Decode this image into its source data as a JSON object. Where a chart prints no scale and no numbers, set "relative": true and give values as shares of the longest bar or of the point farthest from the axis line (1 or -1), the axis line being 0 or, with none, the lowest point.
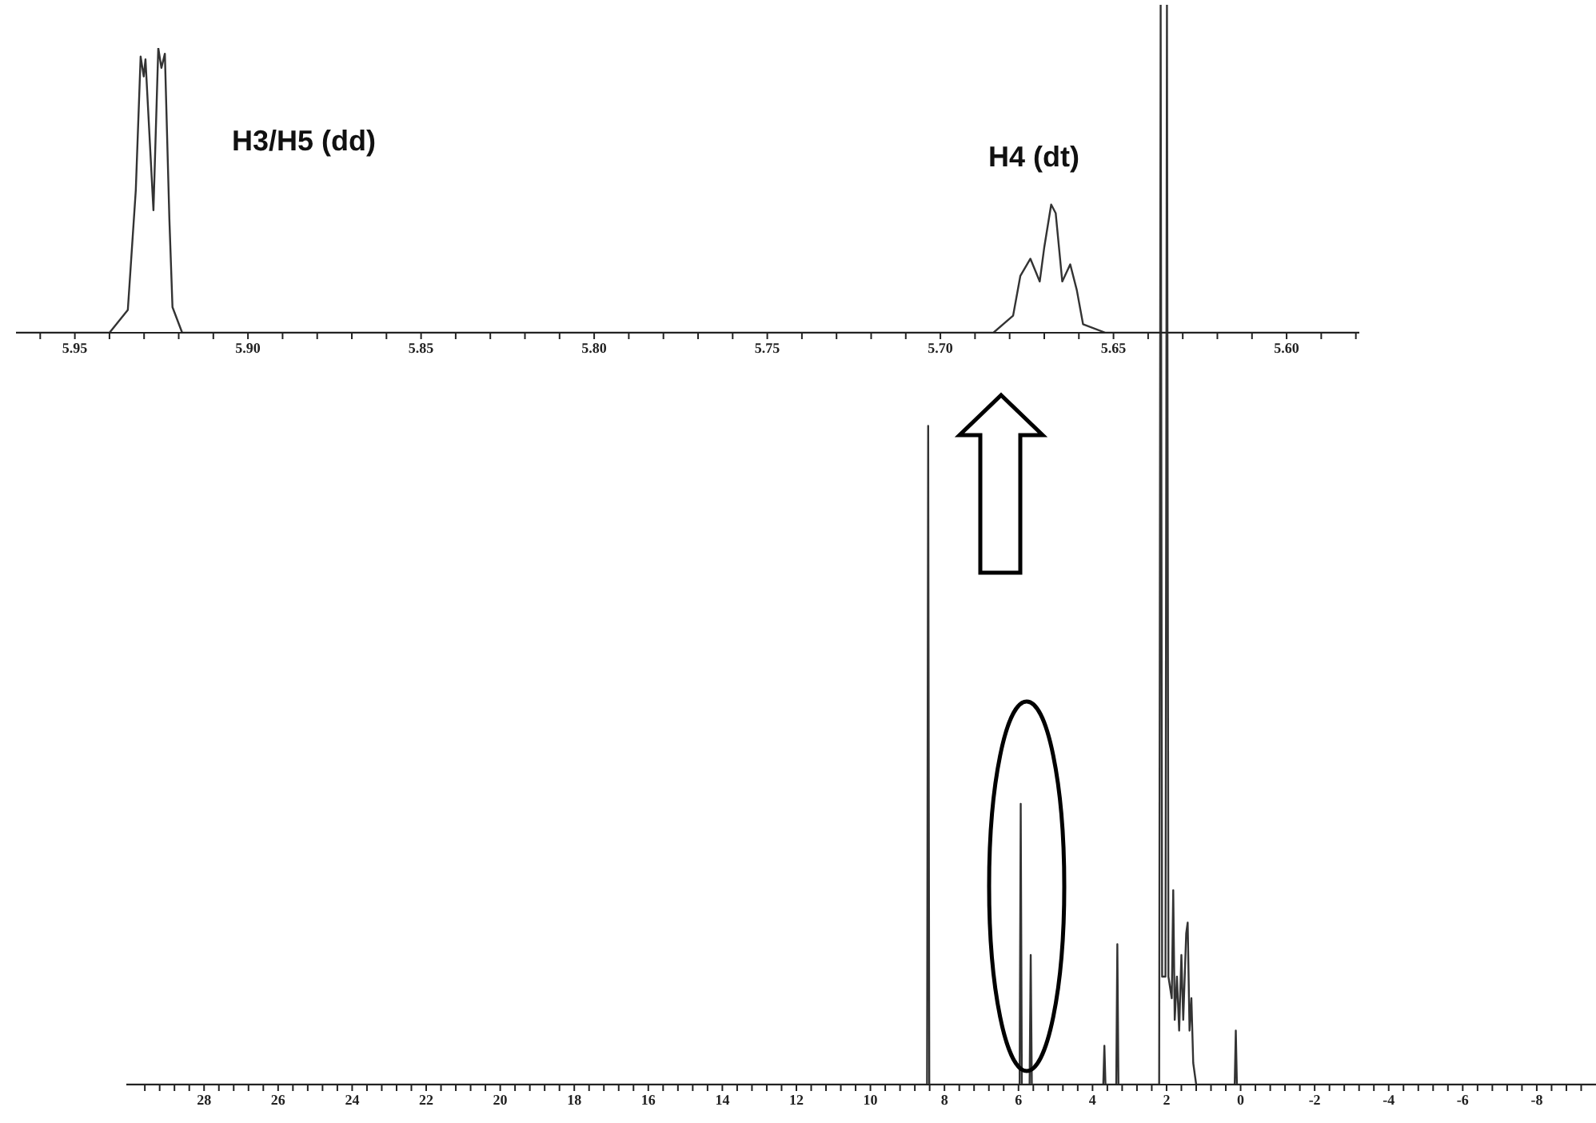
{
  "chart_data": [
    {
      "type": "line",
      "relative": true,
      "marker": "none",
      "tick_labels": "x",
      "xlim": [
        5.967,
        5.579
      ],
      "xticks": [
        {
          "value": 5.96,
          "label": null
        },
        5.95,
        {
          "value": 5.94,
          "label": null
        },
        {
          "value": 5.93,
          "label": null
        },
        {
          "value": 5.92,
          "label": null
        },
        {
          "value": 5.91,
          "label": null
        },
        {
          "value": 5.9,
          "label": "5.90"
        },
        {
          "value": 5.89,
          "label": null
        },
        {
          "value": 5.88,
          "label": null
        },
        {
          "value": 5.87,
          "label": null
        },
        {
          "value": 5.86,
          "label": null
        },
        5.85,
        {
          "value": 5.84,
          "label": null
        },
        {
          "value": 5.83,
          "label": null
        },
        {
          "value": 5.82,
          "label": null
        },
        {
          "value": 5.81,
          "label": null
        },
        {
          "value": 5.8,
          "label": "5.80"
        },
        {
          "value": 5.79,
          "label": null
        },
        {
          "value": 5.78,
          "label": null
        },
        {
          "value": 5.77,
          "label": null
        },
        {
          "value": 5.76,
          "label": null
        },
        5.75,
        {
          "value": 5.74,
          "label": null
        },
        {
          "value": 5.73,
          "label": null
        },
        {
          "value": 5.72,
          "label": null
        },
        {
          "value": 5.71,
          "label": null
        },
        {
          "value": 5.7,
          "label": "5.70"
        },
        {
          "value": 5.69,
          "label": null
        },
        {
          "value": 5.68,
          "label": null
        },
        {
          "value": 5.67,
          "label": null
        },
        {
          "value": 5.66,
          "label": null
        },
        5.65,
        {
          "value": 5.64,
          "label": null
        },
        {
          "value": 5.63,
          "label": null
        },
        {
          "value": 5.62,
          "label": null
        },
        {
          "value": 5.61,
          "label": null
        },
        {
          "value": 5.6,
          "label": "5.60"
        },
        {
          "value": 5.59,
          "label": null
        },
        {
          "value": 5.58,
          "label": null
        }
      ],
      "series": [
        {
          "color": "#333333",
          "x": [
            5.967,
            5.94,
            5.9347,
            5.9324,
            5.931,
            5.9301,
            5.9296,
            5.9273,
            5.9259,
            5.925,
            5.924,
            5.9227,
            5.9218,
            5.919,
            5.9,
            5.6847,
            5.679,
            5.6769,
            5.674,
            5.6713,
            5.67,
            5.668,
            5.6667,
            5.6648,
            5.6625,
            5.6606,
            5.6588,
            5.6523,
            5.579
          ],
          "values": [
            0,
            0,
            0.08,
            0.5,
            0.97,
            0.9,
            0.96,
            0.43,
            1,
            0.93,
            0.98,
            0.4,
            0.09,
            0,
            0,
            0,
            0.06,
            0.2,
            0.26,
            0.18,
            0.3,
            0.45,
            0.42,
            0.18,
            0.24,
            0.15,
            0.03,
            0,
            0
          ]
        }
      ],
      "annotations": [
        "H3/H5 (dd)",
        "H4 (dt)"
      ]
    },
    {
      "type": "line",
      "relative": true,
      "marker": "none",
      "tick_labels": "x",
      "xlim": [
        30.1,
        -9.6
      ],
      "xticks": [
        {
          "value": 29.6,
          "label": null
        },
        {
          "value": 29.2,
          "label": null
        },
        {
          "value": 28.8,
          "label": null
        },
        {
          "value": 28.4,
          "label": null
        },
        28,
        {
          "value": 27.6,
          "label": null
        },
        {
          "value": 27.2,
          "label": null
        },
        {
          "value": 26.8,
          "label": null
        },
        {
          "value": 26.4,
          "label": null
        },
        26,
        {
          "value": 25.6,
          "label": null
        },
        {
          "value": 25.2,
          "label": null
        },
        {
          "value": 24.8,
          "label": null
        },
        {
          "value": 24.4,
          "label": null
        },
        24,
        {
          "value": 23.6,
          "label": null
        },
        {
          "value": 23.2,
          "label": null
        },
        {
          "value": 22.8,
          "label": null
        },
        {
          "value": 22.4,
          "label": null
        },
        22,
        {
          "value": 21.6,
          "label": null
        },
        {
          "value": 21.2,
          "label": null
        },
        {
          "value": 20.8,
          "label": null
        },
        {
          "value": 20.4,
          "label": null
        },
        20,
        {
          "value": 19.6,
          "label": null
        },
        {
          "value": 19.2,
          "label": null
        },
        {
          "value": 18.8,
          "label": null
        },
        {
          "value": 18.4,
          "label": null
        },
        18,
        {
          "value": 17.6,
          "label": null
        },
        {
          "value": 17.2,
          "label": null
        },
        {
          "value": 16.8,
          "label": null
        },
        {
          "value": 16.4,
          "label": null
        },
        16,
        {
          "value": 15.6,
          "label": null
        },
        {
          "value": 15.2,
          "label": null
        },
        {
          "value": 14.8,
          "label": null
        },
        {
          "value": 14.4,
          "label": null
        },
        14,
        {
          "value": 13.6,
          "label": null
        },
        {
          "value": 13.2,
          "label": null
        },
        {
          "value": 12.8,
          "label": null
        },
        {
          "value": 12.4,
          "label": null
        },
        12,
        {
          "value": 11.6,
          "label": null
        },
        {
          "value": 11.2,
          "label": null
        },
        {
          "value": 10.8,
          "label": null
        },
        {
          "value": 10.4,
          "label": null
        },
        10,
        {
          "value": 9.6,
          "label": null
        },
        {
          "value": 9.2,
          "label": null
        },
        {
          "value": 8.8,
          "label": null
        },
        {
          "value": 8.4,
          "label": null
        },
        8,
        {
          "value": 7.6,
          "label": null
        },
        {
          "value": 7.2,
          "label": null
        },
        {
          "value": 6.8,
          "label": null
        },
        {
          "value": 6.4,
          "label": null
        },
        6,
        {
          "value": 5.6,
          "label": null
        },
        {
          "value": 5.2,
          "label": null
        },
        {
          "value": 4.8,
          "label": null
        },
        {
          "value": 4.4,
          "label": null
        },
        4,
        {
          "value": 3.6,
          "label": null
        },
        {
          "value": 3.2,
          "label": null
        },
        {
          "value": 2.8,
          "label": null
        },
        {
          "value": 2.4,
          "label": null
        },
        2,
        {
          "value": 1.6,
          "label": null
        },
        {
          "value": 1.2,
          "label": null
        },
        {
          "value": 0.8,
          "label": null
        },
        {
          "value": 0.4,
          "label": null
        },
        0,
        {
          "value": -0.4,
          "label": null
        },
        {
          "value": -0.8,
          "label": null
        },
        {
          "value": -1.2,
          "label": null
        },
        {
          "value": -1.6,
          "label": null
        },
        -2,
        {
          "value": -2.4,
          "label": null
        },
        {
          "value": -2.8,
          "label": null
        },
        {
          "value": -3.2,
          "label": null
        },
        {
          "value": -3.6,
          "label": null
        },
        -4,
        {
          "value": -4.4,
          "label": null
        },
        {
          "value": -4.8,
          "label": null
        },
        {
          "value": -5.2,
          "label": null
        },
        {
          "value": -5.6,
          "label": null
        },
        -6,
        {
          "value": -6.4,
          "label": null
        },
        {
          "value": -6.8,
          "label": null
        },
        {
          "value": -7.2,
          "label": null
        },
        {
          "value": -7.6,
          "label": null
        },
        -8,
        {
          "value": -8.4,
          "label": null
        },
        {
          "value": -8.8,
          "label": null
        },
        {
          "value": -9.2,
          "label": null
        }
      ],
      "series": [
        {
          "color": "#333333",
          "x": [
            30.1,
            8.47,
            8.44,
            8.41,
            5.97,
            5.94,
            5.91,
            5.7,
            5.67,
            5.64,
            3.71,
            3.68,
            3.65,
            3.36,
            3.33,
            3.3,
            2.2,
            2.16,
            2.12,
            2.03,
            1.99,
            1.95,
            1.86,
            1.82,
            1.78,
            1.72,
            1.66,
            1.6,
            1.55,
            1.47,
            1.43,
            1.38,
            1.33,
            1.28,
            1.2,
            0.16,
            0.13,
            0.1,
            -9.6
          ],
          "values": [
            0,
            0,
            0.61,
            0,
            0,
            0.26,
            0,
            0,
            0.12,
            0,
            0,
            0.036,
            0,
            0,
            0.13,
            0,
            0,
            1,
            0.1,
            0.1,
            1,
            0.1,
            0.08,
            0.18,
            0.06,
            0.1,
            0.05,
            0.12,
            0.06,
            0.14,
            0.15,
            0.05,
            0.08,
            0.02,
            0,
            0,
            0.05,
            0,
            0
          ]
        }
      ]
    }
  ]
}
